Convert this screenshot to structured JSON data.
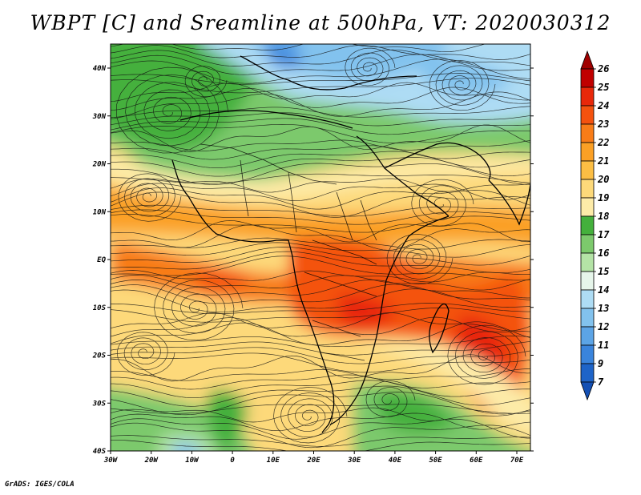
{
  "header": {
    "title": "WBPT [C] and Sreamline at 500hPa, VT: 2020030312"
  },
  "map": {
    "lat_labels": [
      "40N",
      "30N",
      "20N",
      "10N",
      "EQ",
      "10S",
      "20S",
      "30S",
      "40S"
    ],
    "lon_labels": [
      "30W",
      "20W",
      "10W",
      "0",
      "10E",
      "20E",
      "30E",
      "40E",
      "50E",
      "60E",
      "70E"
    ]
  },
  "colorbar": {
    "levels": [
      "26",
      "25",
      "24",
      "23",
      "22",
      "21",
      "20",
      "19",
      "18",
      "17",
      "16",
      "15",
      "14",
      "13",
      "12",
      "11",
      "9",
      "7"
    ],
    "colors": {
      "above_26": "#a00000",
      "c25_26": "#c00000",
      "c24_25": "#e8280a",
      "c23_24": "#f4520f",
      "c22_23": "#f87c18",
      "c21_22": "#fba025",
      "c20_21": "#fcbe44",
      "c19_20": "#fdd97a",
      "c18_19": "#fdeba8",
      "c17_18": "#44b03c",
      "c16_17": "#7cc96c",
      "c15_16": "#b4e3a6",
      "c14_15": "#e6f5ea",
      "c13_14": "#aedcf4",
      "c12_13": "#82c2ee",
      "c11_12": "#5ca4e6",
      "c9_11": "#3a84dc",
      "c7_9": "#1e64c8",
      "below_7": "#1450b4"
    }
  },
  "footer": {
    "credit": "GrADS: IGES/COLA"
  }
}
